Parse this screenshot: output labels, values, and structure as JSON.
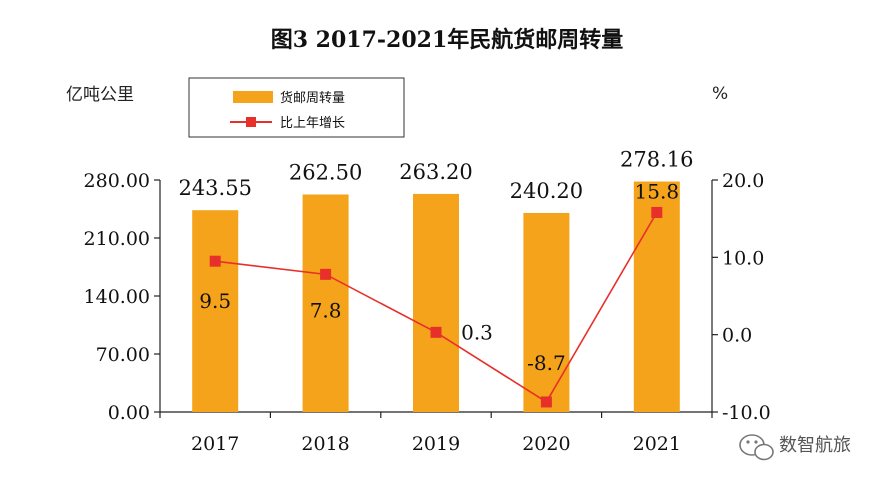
{
  "chart_data": {
    "type": "bar",
    "title": "图3 2017-2021年民航货邮周转量",
    "categories": [
      "2017",
      "2018",
      "2019",
      "2020",
      "2021"
    ],
    "series": [
      {
        "name": "货邮周转量",
        "type": "bar",
        "axis": "left",
        "values": [
          243.55,
          262.5,
          263.2,
          240.2,
          278.16
        ],
        "labels": [
          "243.55",
          "262.50",
          "263.20",
          "240.20",
          "278.16"
        ],
        "color": "#f5a31a"
      },
      {
        "name": "比上年增长",
        "type": "line",
        "axis": "right",
        "values": [
          9.5,
          7.8,
          0.3,
          -8.7,
          15.8
        ],
        "labels": [
          "9.5",
          "7.8",
          "0.3",
          "-8.7",
          "15.8"
        ],
        "color": "#e8302a"
      }
    ],
    "y_left": {
      "unit": "亿吨公里",
      "ylim": [
        0,
        280
      ],
      "ticks": [
        0,
        70,
        140,
        210,
        280
      ],
      "tick_labels": [
        "0.00",
        "70.00",
        "140.00",
        "210.00",
        "280.00"
      ]
    },
    "y_right": {
      "unit": "%",
      "ylim": [
        -10,
        20
      ],
      "ticks": [
        -10,
        0,
        10,
        20
      ],
      "tick_labels": [
        "-10.0",
        "0.0",
        "10.0",
        "20.0"
      ]
    },
    "grid": false,
    "legend": {
      "placement": "top-left"
    }
  },
  "watermark": {
    "text": "数智航旅",
    "icon": "wechat-icon"
  }
}
